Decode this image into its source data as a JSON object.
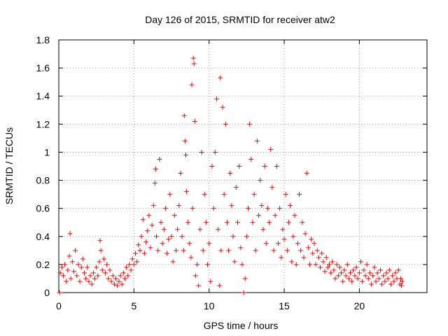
{
  "chart_data": {
    "type": "scatter",
    "title": "Day 126 of 2015, SRMTID for receiver atw2",
    "xlabel": "GPS time / hours",
    "ylabel": "SRMTID / TECUs",
    "xlim": [
      0,
      24.5
    ],
    "ylim": [
      0,
      1.8
    ],
    "xticks": [
      0,
      5,
      10,
      15,
      20
    ],
    "xtick_labels": [
      "0",
      "5",
      "10",
      "15",
      "20"
    ],
    "yticks": [
      0,
      0.2,
      0.4,
      0.6,
      0.8,
      1,
      1.2,
      1.4,
      1.6,
      1.8
    ],
    "ytick_labels": [
      "0",
      "0.2",
      "0.4",
      "0.6",
      "0.8",
      "1",
      "1.2",
      "1.4",
      "1.6",
      "1.8"
    ],
    "grid": true,
    "marker": "+",
    "marker_color": "#ff0000",
    "series": [
      {
        "name": "SRMTID",
        "points": [
          [
            0.05,
            0.0
          ],
          [
            0.1,
            0.14
          ],
          [
            0.2,
            0.18
          ],
          [
            0.3,
            0.12
          ],
          [
            0.4,
            0.2
          ],
          [
            0.5,
            0.08
          ],
          [
            0.6,
            0.16
          ],
          [
            0.7,
            0.26
          ],
          [
            0.75,
            0.42
          ],
          [
            0.8,
            0.1
          ],
          [
            0.9,
            0.22
          ],
          [
            1.0,
            0.15
          ],
          [
            1.1,
            0.3
          ],
          [
            1.2,
            0.12
          ],
          [
            1.3,
            0.2
          ],
          [
            1.4,
            0.08
          ],
          [
            1.5,
            0.18
          ],
          [
            1.6,
            0.24
          ],
          [
            1.7,
            0.14
          ],
          [
            1.8,
            0.1
          ],
          [
            1.9,
            0.18
          ],
          [
            2.0,
            0.08
          ],
          [
            2.1,
            0.12
          ],
          [
            2.2,
            0.06
          ],
          [
            2.3,
            0.14
          ],
          [
            2.4,
            0.1
          ],
          [
            2.5,
            0.18
          ],
          [
            2.6,
            0.12
          ],
          [
            2.7,
            0.22
          ],
          [
            2.75,
            0.37
          ],
          [
            2.8,
            0.3
          ],
          [
            2.9,
            0.16
          ],
          [
            3.0,
            0.24
          ],
          [
            3.1,
            0.14
          ],
          [
            3.2,
            0.2
          ],
          [
            3.3,
            0.1
          ],
          [
            3.4,
            0.16
          ],
          [
            3.5,
            0.08
          ],
          [
            3.6,
            0.12
          ],
          [
            3.7,
            0.06
          ],
          [
            3.8,
            0.1
          ],
          [
            3.9,
            0.05
          ],
          [
            4.0,
            0.08
          ],
          [
            4.1,
            0.12
          ],
          [
            4.2,
            0.06
          ],
          [
            4.3,
            0.14
          ],
          [
            4.4,
            0.1
          ],
          [
            4.5,
            0.18
          ],
          [
            4.6,
            0.12
          ],
          [
            4.7,
            0.2
          ],
          [
            4.8,
            0.16
          ],
          [
            4.9,
            0.24
          ],
          [
            5.0,
            0.2
          ],
          [
            5.1,
            0.28
          ],
          [
            5.2,
            0.22
          ],
          [
            5.3,
            0.34
          ],
          [
            5.4,
            0.3
          ],
          [
            5.5,
            0.4
          ],
          [
            5.6,
            0.52
          ],
          [
            5.7,
            0.28
          ],
          [
            5.8,
            0.36
          ],
          [
            5.9,
            0.44
          ],
          [
            6.0,
            0.55
          ],
          [
            6.1,
            0.32
          ],
          [
            6.2,
            0.48
          ],
          [
            6.3,
            0.62
          ],
          [
            6.4,
            0.78
          ],
          [
            6.45,
            0.88
          ],
          [
            6.5,
            0.4
          ],
          [
            6.6,
            0.3
          ],
          [
            6.7,
            0.95
          ],
          [
            6.8,
            0.5
          ],
          [
            6.9,
            0.35
          ],
          [
            7.0,
            0.45
          ],
          [
            7.1,
            0.6
          ],
          [
            7.2,
            0.28
          ],
          [
            7.3,
            0.38
          ],
          [
            7.4,
            0.7
          ],
          [
            7.5,
            0.4
          ],
          [
            7.6,
            0.22
          ],
          [
            7.7,
            0.55
          ],
          [
            7.8,
            0.3
          ],
          [
            7.9,
            0.45
          ],
          [
            8.0,
            0.62
          ],
          [
            8.1,
            0.85
          ],
          [
            8.2,
            0.4
          ],
          [
            8.3,
            0.3
          ],
          [
            8.35,
            1.26
          ],
          [
            8.4,
            1.08
          ],
          [
            8.45,
            0.98
          ],
          [
            8.5,
            0.72
          ],
          [
            8.6,
            0.5
          ],
          [
            8.7,
            0.35
          ],
          [
            8.8,
            0.25
          ],
          [
            8.85,
            1.48
          ],
          [
            8.9,
            0.6
          ],
          [
            8.95,
            1.67
          ],
          [
            9.0,
            1.63
          ],
          [
            9.05,
            1.22
          ],
          [
            9.1,
            0.12
          ],
          [
            9.2,
            0.2
          ],
          [
            9.3,
            0.05
          ],
          [
            9.4,
            0.45
          ],
          [
            9.5,
            1.0
          ],
          [
            9.6,
            0.3
          ],
          [
            9.7,
            0.7
          ],
          [
            9.8,
            0.5
          ],
          [
            9.9,
            0.2
          ],
          [
            10.0,
            0.35
          ],
          [
            10.1,
            0.08
          ],
          [
            10.2,
            0.9
          ],
          [
            10.3,
            0.6
          ],
          [
            10.4,
            1.0
          ],
          [
            10.5,
            1.38
          ],
          [
            10.6,
            0.45
          ],
          [
            10.7,
            0.05
          ],
          [
            10.75,
            1.53
          ],
          [
            10.8,
            0.3
          ],
          [
            10.9,
            1.32
          ],
          [
            11.0,
            0.7
          ],
          [
            11.1,
            1.2
          ],
          [
            11.2,
            0.5
          ],
          [
            11.3,
            0.3
          ],
          [
            11.4,
            0.85
          ],
          [
            11.5,
            0.62
          ],
          [
            11.6,
            0.4
          ],
          [
            11.7,
            0.22
          ],
          [
            11.8,
            0.75
          ],
          [
            11.9,
            0.5
          ],
          [
            12.0,
            0.9
          ],
          [
            12.1,
            0.32
          ],
          [
            12.2,
            0.2
          ],
          [
            12.3,
            0.0
          ],
          [
            12.4,
            0.1
          ],
          [
            12.5,
            0.4
          ],
          [
            12.6,
            0.6
          ],
          [
            12.7,
            1.2
          ],
          [
            12.8,
            0.95
          ],
          [
            12.9,
            0.5
          ],
          [
            13.0,
            0.7
          ],
          [
            13.1,
            0.3
          ],
          [
            13.2,
            1.08
          ],
          [
            13.3,
            0.55
          ],
          [
            13.4,
            0.8
          ],
          [
            13.5,
            0.62
          ],
          [
            13.6,
            0.45
          ],
          [
            13.7,
            0.9
          ],
          [
            13.8,
            0.35
          ],
          [
            13.9,
            0.6
          ],
          [
            14.0,
            0.5
          ],
          [
            14.1,
            1.02
          ],
          [
            14.2,
            0.75
          ],
          [
            14.3,
            0.3
          ],
          [
            14.4,
            0.55
          ],
          [
            14.5,
            0.9
          ],
          [
            14.6,
            0.35
          ],
          [
            14.7,
            0.6
          ],
          [
            14.8,
            0.25
          ],
          [
            14.9,
            0.45
          ],
          [
            15.0,
            0.38
          ],
          [
            15.1,
            0.7
          ],
          [
            15.2,
            0.3
          ],
          [
            15.3,
            0.5
          ],
          [
            15.4,
            0.62
          ],
          [
            15.5,
            0.22
          ],
          [
            15.6,
            0.4
          ],
          [
            15.7,
            0.55
          ],
          [
            15.8,
            0.2
          ],
          [
            15.9,
            0.35
          ],
          [
            16.0,
            0.7
          ],
          [
            16.1,
            0.3
          ],
          [
            16.2,
            0.5
          ],
          [
            16.3,
            0.25
          ],
          [
            16.4,
            0.42
          ],
          [
            16.5,
            0.85
          ],
          [
            16.6,
            0.32
          ],
          [
            16.7,
            0.2
          ],
          [
            16.8,
            0.38
          ],
          [
            16.9,
            0.28
          ],
          [
            17.0,
            0.35
          ],
          [
            17.1,
            0.2
          ],
          [
            17.2,
            0.3
          ],
          [
            17.3,
            0.25
          ],
          [
            17.4,
            0.18
          ],
          [
            17.5,
            0.28
          ],
          [
            17.6,
            0.22
          ],
          [
            17.7,
            0.15
          ],
          [
            17.8,
            0.25
          ],
          [
            17.9,
            0.18
          ],
          [
            18.0,
            0.2
          ],
          [
            18.1,
            0.14
          ],
          [
            18.2,
            0.22
          ],
          [
            18.3,
            0.16
          ],
          [
            18.4,
            0.1
          ],
          [
            18.5,
            0.2
          ],
          [
            18.6,
            0.12
          ],
          [
            18.7,
            0.18
          ],
          [
            18.8,
            0.14
          ],
          [
            18.9,
            0.08
          ],
          [
            19.0,
            0.16
          ],
          [
            19.1,
            0.12
          ],
          [
            19.2,
            0.2
          ],
          [
            19.3,
            0.1
          ],
          [
            19.4,
            0.14
          ],
          [
            19.5,
            0.08
          ],
          [
            19.6,
            0.16
          ],
          [
            19.7,
            0.12
          ],
          [
            19.8,
            0.18
          ],
          [
            19.9,
            0.1
          ],
          [
            20.0,
            0.14
          ],
          [
            20.1,
            0.22
          ],
          [
            20.2,
            0.08
          ],
          [
            20.3,
            0.16
          ],
          [
            20.4,
            0.12
          ],
          [
            20.5,
            0.2
          ],
          [
            20.6,
            0.1
          ],
          [
            20.7,
            0.14
          ],
          [
            20.8,
            0.06
          ],
          [
            20.9,
            0.12
          ],
          [
            21.0,
            0.18
          ],
          [
            21.1,
            0.08
          ],
          [
            21.2,
            0.14
          ],
          [
            21.3,
            0.1
          ],
          [
            21.4,
            0.16
          ],
          [
            21.5,
            0.06
          ],
          [
            21.6,
            0.12
          ],
          [
            21.7,
            0.08
          ],
          [
            21.8,
            0.14
          ],
          [
            21.9,
            0.1
          ],
          [
            22.0,
            0.16
          ],
          [
            22.1,
            0.06
          ],
          [
            22.2,
            0.12
          ],
          [
            22.3,
            0.08
          ],
          [
            22.4,
            0.14
          ],
          [
            22.5,
            0.1
          ],
          [
            22.6,
            0.16
          ],
          [
            22.7,
            0.06
          ],
          [
            22.75,
            0.1
          ],
          [
            22.8,
            0.05
          ],
          [
            22.85,
            0.08
          ]
        ]
      }
    ]
  }
}
